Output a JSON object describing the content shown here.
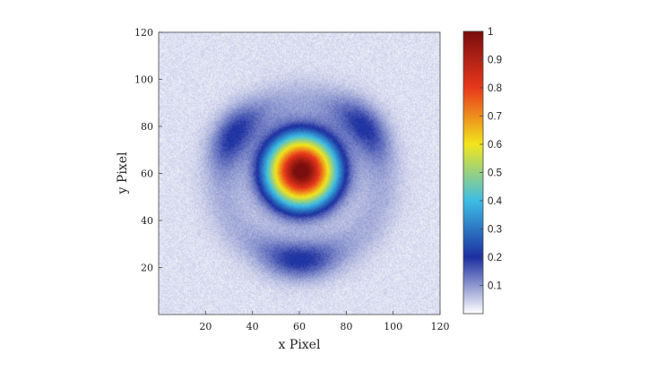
{
  "chart_data": {
    "type": "heatmap",
    "title": "",
    "xlabel": "x Pixel",
    "ylabel": "y Pixel",
    "xlim": [
      0,
      120
    ],
    "ylim": [
      0,
      120
    ],
    "x_ticks": [
      20,
      40,
      60,
      80,
      100,
      120
    ],
    "y_ticks": [
      20,
      40,
      60,
      80,
      100,
      120
    ],
    "grid": false,
    "colorbar": {
      "range": [
        0,
        1
      ],
      "ticks": [
        0.1,
        0.2,
        0.3,
        0.4,
        0.5,
        0.6,
        0.7,
        0.8,
        0.9,
        1
      ],
      "tick_labels": [
        "0.1",
        "0.2",
        "0.3",
        "0.4",
        "0.5",
        "0.6",
        "0.7",
        "0.8",
        "0.9",
        "1"
      ],
      "colormap": [
        "#ffffff",
        "#1c2fa0",
        "#3dbde5",
        "#f2e51c",
        "#e8381c",
        "#7a0d0d"
      ],
      "placement": "right"
    },
    "features": {
      "peak": {
        "x": 61,
        "y": 61,
        "value": 1.0
      },
      "central_spot_radius": 21,
      "inner_lobe_radius": 12,
      "outer_ring": {
        "center": {
          "x": 61,
          "y": 57
        },
        "radius": 34,
        "peak_value": 0.13,
        "brightest_regions": [
          {
            "x": 30,
            "y": 78
          },
          {
            "x": 90,
            "y": 82
          },
          {
            "x": 60,
            "y": 24
          }
        ]
      },
      "background_level": 0.03
    }
  }
}
